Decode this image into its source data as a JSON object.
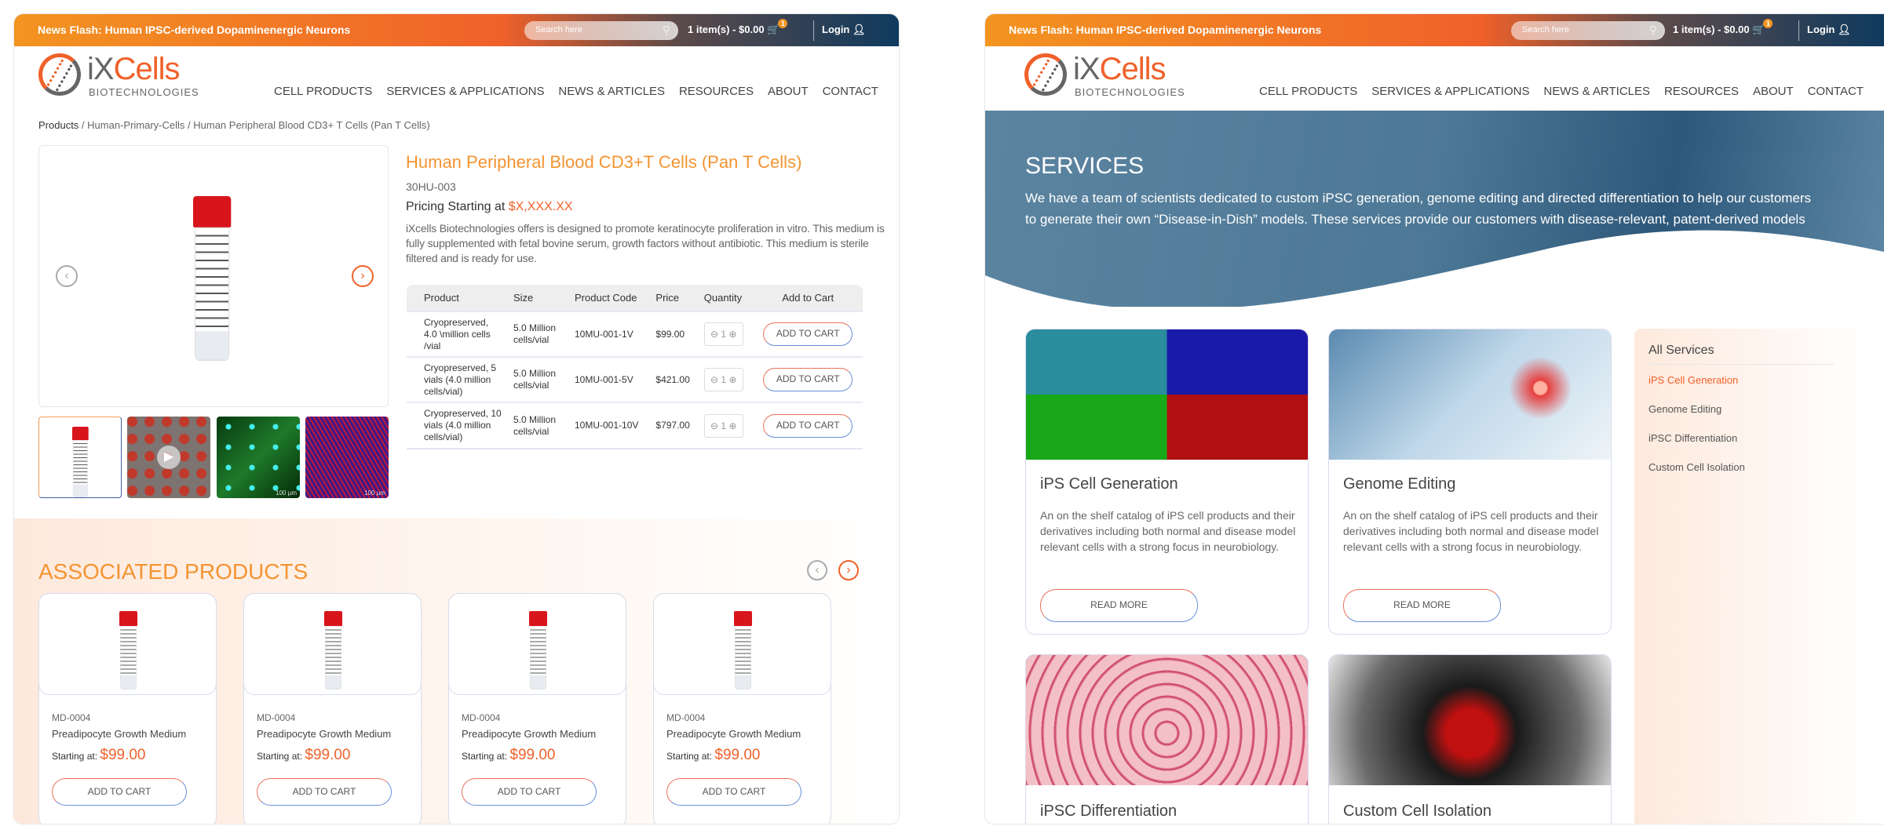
{
  "header": {
    "news_flash": "News Flash: Human IPSC-derived Dopaminenergic Neurons",
    "search_placeholder": "Search here",
    "cart": "1 item(s) - $0.00",
    "cart_count": "1",
    "login": "Login",
    "logo_name_i": "i",
    "logo_name_x": "X",
    "logo_name_cells": "Cells",
    "logo_sub": "BIOTECHNOLOGIES",
    "nav": [
      "CELL PRODUCTS",
      "SERVICES & APPLICATIONS",
      "NEWS & ARTICLES",
      "RESOURCES",
      "ABOUT",
      "CONTACT"
    ]
  },
  "product": {
    "breadcrumb": [
      "Products",
      "Human-Primary-Cells",
      "Human Peripheral Blood CD3+ T Cells (Pan T Cells)"
    ],
    "title": "Human Peripheral Blood CD3+T Cells (Pan T Cells)",
    "sku": "30HU-003",
    "pricing_label": "Pricing Starting at ",
    "pricing_value": "$X,XXX.XX",
    "description": "iXcells Biotechnologies offers is designed to promote keratinocyte proliferation in vitro. This medium is fully supplemented with fetal bovine serum, growth factors without antibiotic. This medium is sterile filtered  and is ready for use.",
    "thumb_scale_label": "100 μm",
    "table": {
      "headers": [
        "Product",
        "Size",
        "Product Code",
        "Price",
        "Quantity",
        "Add to Cart"
      ],
      "rows": [
        {
          "product": "Cryopreserved, 4.0 \\million cells /vial",
          "size": "5.0 Million cells/vial",
          "code": "10MU-001-1V",
          "price": "$99.00",
          "qty": "1",
          "button": "ADD TO CART"
        },
        {
          "product": "Cryopreserved, 5 vials (4.0 million cells/vial)",
          "size": "5.0 Million cells/vial",
          "code": "10MU-001-5V",
          "price": "$421.00",
          "qty": "1",
          "button": "ADD TO CART"
        },
        {
          "product": "Cryopreserved, 10 vials (4.0 million cells/vial)",
          "size": "5.0 Million cells/vial",
          "code": "10MU-001-10V",
          "price": "$797.00",
          "qty": "1",
          "button": "ADD TO CART"
        }
      ]
    }
  },
  "associated": {
    "title": "ASSOCIATED PRODUCTS",
    "items": [
      {
        "sku": "MD-0004",
        "name": "Preadipocyte Growth Medium",
        "starting": "Starting at:",
        "price": "$99.00",
        "button": "ADD TO CART"
      },
      {
        "sku": "MD-0004",
        "name": "Preadipocyte Growth Medium",
        "starting": "Starting at:",
        "price": "$99.00",
        "button": "ADD TO CART"
      },
      {
        "sku": "MD-0004",
        "name": "Preadipocyte Growth Medium",
        "starting": "Starting at:",
        "price": "$99.00",
        "button": "ADD TO CART"
      },
      {
        "sku": "MD-0004",
        "name": "Preadipocyte Growth Medium",
        "starting": "Starting at:",
        "price": "$99.00",
        "button": "ADD TO CART"
      }
    ]
  },
  "services": {
    "title": "SERVICES",
    "description": "We have a team of scientists dedicated to custom iPSC generation, genome editing and directed differentiation to help our customers to generate their own “Disease-in-Dish” models. These  services provide our customers with disease-relevant, patent-derived models",
    "cards": [
      {
        "title": "iPS Cell Generation",
        "description": "An on the shelf catalog of iPS cell products and their derivatives including both normal and disease model relevant cells with a strong focus in neurobiology.",
        "button": "READ MORE"
      },
      {
        "title": "Genome Editing",
        "description": "An on the shelf catalog of iPS cell products and their derivatives  including both normal and disease model relevant cells with a strong  focus in neurobiology.",
        "button": "READ MORE"
      },
      {
        "title": "iPSC Differentiation"
      },
      {
        "title": "Custom Cell Isolation"
      }
    ],
    "sidebar": {
      "title": "All Services",
      "active_color": "#f0612a",
      "items": [
        "iPS Cell Generation",
        "Genome Editing",
        "iPSC Differentiation",
        "Custom Cell Isolation"
      ]
    }
  },
  "colors": {
    "accent": "#f0612a",
    "brand_dark": "#0f3a5e"
  }
}
